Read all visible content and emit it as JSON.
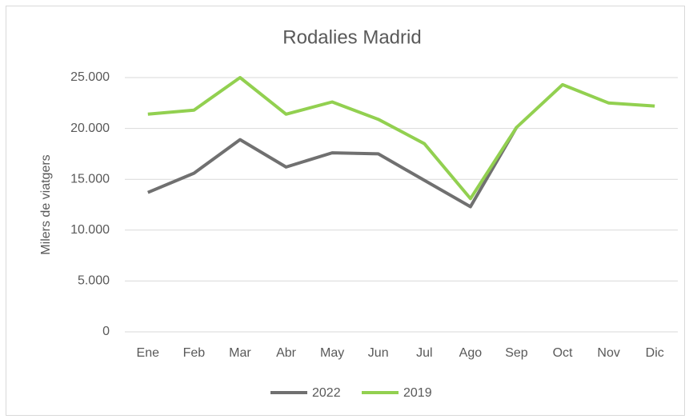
{
  "chart_data": {
    "type": "line",
    "title": "Rodalies Madrid",
    "y_label": "Milers de viatgers",
    "categories": [
      "Ene",
      "Feb",
      "Mar",
      "Abr",
      "May",
      "Jun",
      "Jul",
      "Ago",
      "Sep",
      "Oct",
      "Nov",
      "Dic"
    ],
    "series": [
      {
        "name": "2022",
        "color": "#707070",
        "values": [
          13700,
          15600,
          18900,
          16200,
          17600,
          17500,
          14900,
          12300,
          20100,
          null,
          null,
          null
        ]
      },
      {
        "name": "2019",
        "color": "#92d050",
        "values": [
          21400,
          21800,
          25000,
          21400,
          22600,
          20900,
          18500,
          13100,
          20100,
          24300,
          22500,
          22200
        ]
      }
    ],
    "ylim": [
      0,
      25000
    ],
    "yticks": [
      0,
      {
        "value": 5000,
        "label": "5.000"
      },
      {
        "value": 10000,
        "label": "10.000"
      },
      {
        "value": 15000,
        "label": "15.000"
      },
      {
        "value": 20000,
        "label": "20.000"
      },
      {
        "value": 25000,
        "label": "25.000"
      }
    ],
    "grid": true,
    "legend": "bottom"
  }
}
